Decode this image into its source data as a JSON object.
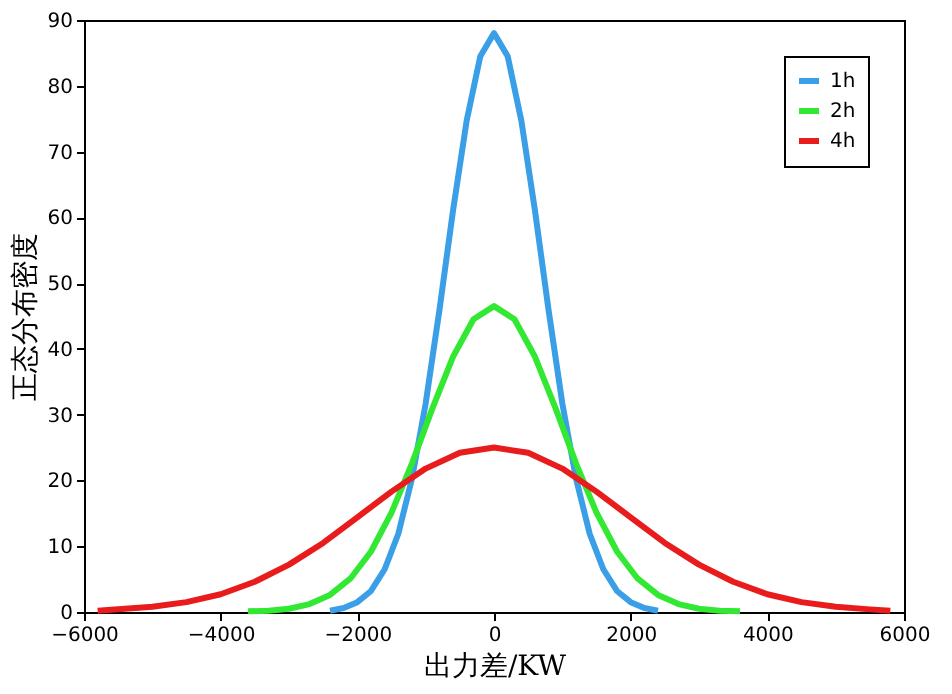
{
  "chart_data": {
    "type": "line",
    "xlabel": "出力差/KW",
    "ylabel": "正态分布密度",
    "xlim": [
      -6000,
      6000
    ],
    "xticks": [
      -6000,
      -4000,
      -2000,
      0,
      2000,
      4000,
      6000
    ],
    "ylim": [
      0,
      90
    ],
    "yticks": [
      0,
      10,
      20,
      30,
      40,
      50,
      60,
      70,
      80,
      90
    ],
    "grid": false,
    "legend": "top right",
    "line_style": "solid",
    "marker": "none",
    "series": [
      {
        "name": "1h",
        "color": "#3a9fe6",
        "x": [
          -2400,
          -2200,
          -2000,
          -1800,
          -1600,
          -1400,
          -1200,
          -1000,
          -800,
          -600,
          -400,
          -200,
          0,
          200,
          400,
          600,
          800,
          1000,
          1200,
          1400,
          1600,
          1800,
          2000,
          2200,
          2400
        ],
        "values": [
          0.2,
          0.6,
          1.5,
          3.2,
          6.5,
          11.9,
          20.3,
          31.7,
          45.8,
          61.0,
          74.7,
          84.5,
          88,
          84.5,
          74.7,
          61.0,
          45.8,
          31.7,
          20.3,
          11.9,
          6.5,
          3.2,
          1.5,
          0.6,
          0.2
        ]
      },
      {
        "name": "2h",
        "color": "#33e833",
        "x": [
          -3600,
          -3300,
          -3000,
          -2700,
          -2400,
          -2100,
          -1800,
          -1500,
          -1200,
          -900,
          -600,
          -300,
          0,
          300,
          600,
          900,
          1200,
          1500,
          1800,
          2100,
          2400,
          2700,
          3000,
          3300,
          3600
        ],
        "values": [
          0.1,
          0.2,
          0.5,
          1.2,
          2.6,
          5.1,
          9.2,
          15.1,
          22.6,
          31.0,
          38.8,
          44.5,
          46.5,
          44.5,
          38.8,
          31.0,
          22.6,
          15.1,
          9.2,
          5.1,
          2.6,
          1.2,
          0.5,
          0.2,
          0.1
        ]
      },
      {
        "name": "4h",
        "color": "#e81c1c",
        "x": [
          -5800,
          -5500,
          -5000,
          -4500,
          -4000,
          -3500,
          -3000,
          -2500,
          -2000,
          -1500,
          -1000,
          -500,
          0,
          500,
          1000,
          1500,
          2000,
          2500,
          3000,
          3500,
          4000,
          4500,
          5000,
          5500,
          5800
        ],
        "values": [
          0.2,
          0.4,
          0.8,
          1.5,
          2.7,
          4.6,
          7.2,
          10.5,
          14.4,
          18.3,
          21.8,
          24.2,
          25,
          24.2,
          21.8,
          18.3,
          14.4,
          10.5,
          7.2,
          4.6,
          2.7,
          1.5,
          0.8,
          0.4,
          0.2
        ]
      }
    ]
  }
}
